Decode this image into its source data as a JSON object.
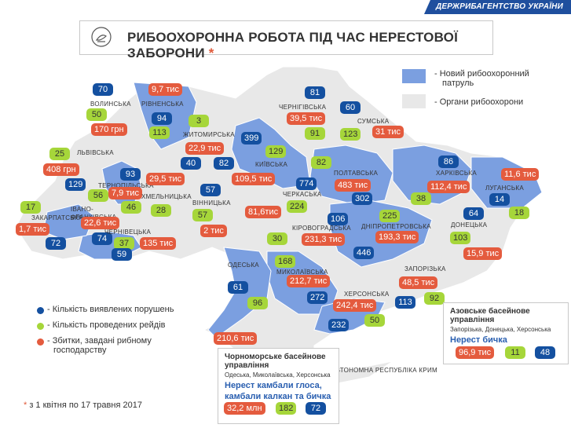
{
  "header": {
    "agency": "ДЕРЖРИБАГЕНТСТВО",
    "agency_accent": "УКРАЇНИ"
  },
  "title": {
    "text": "РИБООХОРОННА РОБОТА ПІД ЧАС НЕРЕСТОВОЇ ЗАБОРОНИ",
    "star": "*"
  },
  "colors": {
    "new_patrol": "#7b9fe0",
    "bodies": "#e8e8e8",
    "violations": "#1450a0",
    "raids": "#a6d63a",
    "damages": "#e45b3e",
    "band": "#1f4f9e"
  },
  "map_legend": [
    {
      "label": "- Новий рибоохоронний",
      "label2": "патруль"
    },
    {
      "label": "- Органи рибоохорони"
    }
  ],
  "stat_legend": [
    {
      "label": "- Кількість виявлених порушень"
    },
    {
      "label": "- Кількість проведених рейдів"
    },
    {
      "label": "- Збитки, завдані рибному",
      "label2": "господарству"
    }
  ],
  "regions": [
    {
      "name": "ВОЛИНСЬКА",
      "violations": "70",
      "raids": "50",
      "damages": ""
    },
    {
      "name": "РІВНЕНСЬКА",
      "violations": "94",
      "raids": "113",
      "damages": "9,7 тис"
    },
    {
      "name": "ЖИТОМИРСЬКА",
      "violations": "40",
      "raids": "3",
      "damages": "22,9 тис"
    },
    {
      "name": "ЧЕРНІГІВСЬКА",
      "violations": "81",
      "raids": "91",
      "damages": "39,5 тис"
    },
    {
      "name": "СУМСЬКА",
      "violations": "60",
      "raids": "123",
      "damages": "31 тис"
    },
    {
      "name": "ЛЬВІВСЬКА",
      "violations": "129",
      "raids": "25",
      "damages": "408 грн"
    },
    {
      "name": "ТЕРНОПІЛЬСЬКА",
      "violations": "93",
      "raids": "56",
      "damages": "7,9 тис"
    },
    {
      "name": "ХМЕЛЬНИЦЬКА",
      "violations": "",
      "raids": "28",
      "damages": "29,5 тис"
    },
    {
      "name": "КИЇВСЬКА",
      "violations": "399",
      "raids": "129",
      "damages": "109,5 тис"
    },
    {
      "name": "ПОЛТАВСЬКА",
      "violations": "302",
      "raids": "82",
      "damages": "483 тис"
    },
    {
      "name": "ХАРКІВСЬКА",
      "violations": "86",
      "raids": "38",
      "damages": "112,4 тис"
    },
    {
      "name": "ЛУГАНСЬКА",
      "violations": "14",
      "raids": "18",
      "damages": "11,6 тис"
    },
    {
      "name": "ЗАКАРПАТСЬКА",
      "violations": "",
      "raids": "17",
      "damages": "1,7 тис"
    },
    {
      "name": "ІВАНО-ФРАНКІВСЬКА",
      "violations": "74",
      "raids": "46",
      "damages": "22,6 тис"
    },
    {
      "name": "ЧЕРНІВЕЦЬКА",
      "violations": "59",
      "raids": "37",
      "damages": "135 тис"
    },
    {
      "name": "ВІННИЦЬКА",
      "violations": "57",
      "raids": "57",
      "damages": "2 тис"
    },
    {
      "name": "ЧЕРКАСЬКА",
      "violations": "774",
      "raids": "224",
      "damages": "81,6тис"
    },
    {
      "name": "КІРОВОГРАДСЬКА",
      "violations": "106",
      "raids": "30",
      "damages": "231,3 тис"
    },
    {
      "name": "ДНІПРОПЕТРОВСЬКА",
      "violations": "446",
      "raids": "225",
      "damages": "193,3 тис"
    },
    {
      "name": "ДОНЕЦЬКА",
      "violations": "64",
      "raids": "103",
      "damages": "15,9 тис"
    },
    {
      "name": "ОДЕСЬКА",
      "violations": "61",
      "raids": "96",
      "damages": ""
    },
    {
      "name": "МИКОЛАЇВСЬКА",
      "violations": "272",
      "raids": "168",
      "damages": "212,7 тис"
    },
    {
      "name": "ЗАПОРІЗЬКА",
      "violations": "113",
      "raids": "92",
      "damages": "48,5 тис"
    },
    {
      "name": "ХЕРСОНСЬКА",
      "violations": "232",
      "raids": "50",
      "damages": "242,4 тис"
    },
    {
      "name": "АВТОНОМНА РЕСПУБЛІКА КРИМ"
    }
  ],
  "misc": {
    "zak_extra": "72",
    "zhytomyr_extra": "82",
    "odesa_damage": "210,6 тис"
  },
  "basins": {
    "black_sea": {
      "title": "Чорноморське басейнове",
      "title2": "управління",
      "areas": "Одеська, Миколаївська, Херсонська",
      "note": "Нерест камбали глоса,",
      "note2": "камбали калкан та бичка",
      "damages": "32,2 млн",
      "raids": "182",
      "violations": "72"
    },
    "azov": {
      "title": "Азовське басейнове",
      "title2": "управління",
      "areas": "Запорізька, Донецька, Херсонська",
      "note": "Нерест бичка",
      "damages": "96,9 тис",
      "raids": "11",
      "violations": "48"
    }
  },
  "footnote": {
    "star": "*",
    "text": " з 1 квітня по 17 травня 2017"
  }
}
